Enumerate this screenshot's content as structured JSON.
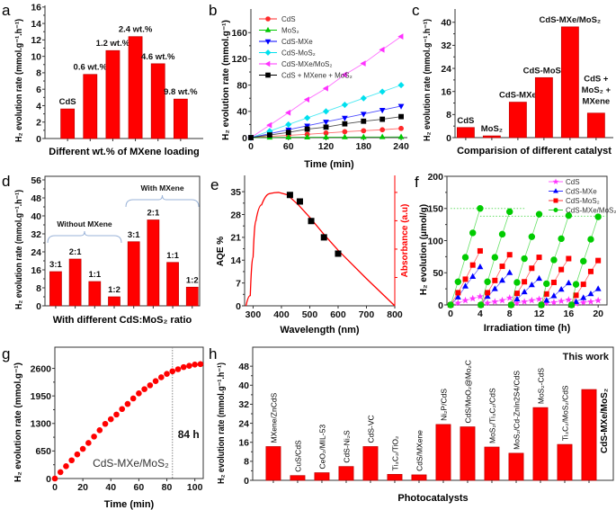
{
  "chart_data": [
    {
      "panel": "a",
      "type": "bar",
      "categories": [
        "CdS",
        "0.6 wt.%",
        "1.2 wt.%",
        "2.4 wt.%",
        "4.6 wt.%",
        "9.8 wt.%"
      ],
      "values": [
        3.6,
        7.8,
        10.7,
        12.4,
        9.1,
        4.8
      ],
      "xlim": [
        0,
        7
      ],
      "ylim": [
        0,
        16.2
      ],
      "yticks": [
        0,
        2,
        4,
        6,
        8,
        10,
        12,
        14,
        16
      ],
      "ylabel": "H₂ evolution rate (mmol.g⁻¹.h⁻¹)",
      "xlabel": "Different wt.% of MXene loading",
      "bar_color": "#ff0000",
      "label_mode": "above"
    },
    {
      "panel": "b",
      "type": "line",
      "x": [
        0,
        30,
        60,
        90,
        120,
        150,
        180,
        210,
        240
      ],
      "series": [
        {
          "name": "CdS",
          "values": [
            0,
            2,
            3.5,
            5,
            7,
            9,
            10.5,
            12,
            14
          ],
          "color": "#ff2a2a",
          "marker": "circle"
        },
        {
          "name": "MoS₂",
          "values": [
            0,
            0.3,
            0.5,
            0.6,
            0.7,
            0.8,
            0.9,
            1.0,
            1.1
          ],
          "color": "#00c800",
          "marker": "triangle-up"
        },
        {
          "name": "CdS-MXe",
          "values": [
            0,
            6,
            12,
            18,
            24,
            30,
            36,
            42,
            48
          ],
          "color": "#0000ff",
          "marker": "triangle-down"
        },
        {
          "name": "CdS-MoS₂",
          "values": [
            0,
            10,
            20,
            30,
            40,
            50,
            60,
            70,
            80
          ],
          "color": "#00e0ee",
          "marker": "diamond"
        },
        {
          "name": "CdS-MXe/MoS₂",
          "values": [
            0,
            19,
            38,
            58,
            75,
            96,
            113,
            134,
            154
          ],
          "color": "#ff33ff",
          "marker": "triangle-left"
        },
        {
          "name": "CdS + MXene + MoS₂",
          "values": [
            0,
            4,
            8,
            13,
            16,
            21,
            25,
            28,
            32
          ],
          "color": "#000000",
          "marker": "square"
        }
      ],
      "xlim": [
        0,
        250
      ],
      "ylim": [
        0,
        196
      ],
      "xticks": [
        0,
        60,
        120,
        180,
        240
      ],
      "yticks": [
        0,
        40,
        80,
        120,
        160
      ],
      "ylabel": "H₂ evolution rate (mmol.g⁻¹)",
      "xlabel": "Time (min)",
      "legend": "top-left"
    },
    {
      "panel": "c",
      "type": "bar",
      "categories": [
        "CdS",
        "MoS₂",
        "CdS-MXe",
        "CdS-MoS₂",
        "CdS-MXe/MoS₂",
        [
          "CdS +",
          "MoS₂ +",
          "MXene"
        ]
      ],
      "values": [
        3.5,
        0.6,
        12.3,
        20.8,
        38.4,
        8.5
      ],
      "xlim": [
        0.59,
        6.66
      ],
      "ylim": [
        0,
        44.6
      ],
      "yticks": [
        0,
        8,
        16,
        24,
        32,
        40
      ],
      "ylabel": "H₂ evolution rate (mmol.g⁻¹.h⁻¹)",
      "xlabel": "Comparision of different catalyst",
      "bar_color": "#ff0000",
      "label_mode": "above"
    },
    {
      "panel": "d",
      "type": "bar",
      "categories": [
        "3:1",
        "2:1",
        "1:1",
        "1:2",
        "3:1",
        "2:1",
        "1:1",
        "1:2"
      ],
      "values": [
        15.2,
        20.8,
        10.8,
        4.0,
        28.5,
        38.2,
        19.3,
        8.3
      ],
      "groups": [
        {
          "label": "Without MXene",
          "members": [
            0,
            1,
            2,
            3
          ]
        },
        {
          "label": "With MXene",
          "members": [
            4,
            5,
            6,
            7
          ]
        }
      ],
      "xlim": [
        0.45,
        8.38
      ],
      "ylim": [
        0,
        57.6
      ],
      "yticks": [
        0,
        8,
        16,
        24,
        32,
        40,
        48,
        56
      ],
      "ylabel": "H₂ evolution rate (mmol.g⁻¹.h⁻¹)",
      "xlabel": "With different CdS:MoS₂ ratio",
      "bar_color": "#ff0000",
      "label_mode": "above"
    },
    {
      "panel": "e",
      "type": "scatter",
      "x": [
        430,
        465,
        505,
        550,
        600
      ],
      "values": [
        34,
        32,
        26,
        21,
        16
      ],
      "absorbance": {
        "x": [
          275,
          290,
          300,
          310,
          330,
          360,
          390,
          420,
          460,
          500,
          550,
          600,
          700,
          800
        ],
        "y": [
          0,
          0.09,
          0.43,
          0.75,
          0.89,
          0.99,
          1.0,
          0.98,
          0.89,
          0.78,
          0.63,
          0.49,
          0.24,
          0
        ],
        "color": "#ff0000"
      },
      "xlim": [
        270,
        800
      ],
      "ylim": [
        0,
        40
      ],
      "ylim_right": [
        0,
        1.15
      ],
      "xticks": [
        300,
        400,
        500,
        600,
        700,
        800
      ],
      "yticks": [
        0,
        7,
        14,
        21,
        28,
        35
      ],
      "ylabel": "AQE %",
      "ylabel_right": "Absorbance (a.u)",
      "xlabel": "Wavelength (nm)"
    },
    {
      "panel": "f",
      "type": "line",
      "cycle_x": [
        [
          0,
          1,
          2,
          3,
          4
        ],
        [
          4.1,
          5,
          6,
          7,
          8
        ],
        [
          8.2,
          9,
          10,
          11,
          12
        ],
        [
          12.3,
          13,
          14,
          15,
          16
        ],
        [
          16.4,
          17,
          18,
          19,
          20
        ]
      ],
      "series": [
        {
          "name": "CdS",
          "color": "#ff33ff",
          "marker": "star",
          "cycles": [
            [
              0,
              3,
              7,
              10,
              13
            ],
            [
              0,
              3,
              5,
              7,
              11
            ],
            [
              0,
              3,
              5,
              7,
              9
            ],
            [
              0,
              3,
              4,
              6,
              8
            ],
            [
              0,
              2,
              4,
              5,
              7
            ]
          ]
        },
        {
          "name": "CdS-MXe",
          "color": "#0000ff",
          "marker": "triangle-up",
          "cycles": [
            [
              0,
              12,
              29,
              44,
              59
            ],
            [
              0,
              13,
              25,
              38,
              50
            ],
            [
              0,
              9,
              20,
              31,
              41
            ],
            [
              0,
              7,
              14,
              24,
              34
            ],
            [
              0,
              5,
              11,
              17,
              25
            ]
          ]
        },
        {
          "name": "CdS-MoS₂",
          "color": "#ff0000",
          "marker": "square",
          "cycles": [
            [
              0,
              19,
              40,
              62,
              84
            ],
            [
              0,
              19,
              38,
              60,
              78
            ],
            [
              0,
              18,
              36,
              57,
              74
            ],
            [
              0,
              17,
              35,
              55,
              72
            ],
            [
              0,
              15,
              32,
              52,
              69
            ]
          ]
        },
        {
          "name": "CdS-MXe/MoS₂",
          "color": "#00cc00",
          "marker": "circle",
          "cycles": [
            [
              0,
              36,
              74,
              112,
              150
            ],
            [
              0,
              36,
              74,
              110,
              145
            ],
            [
              0,
              35,
              72,
              106,
              141
            ],
            [
              0,
              33,
              70,
              103,
              139
            ],
            [
              0,
              32,
              68,
              102,
              137
            ]
          ]
        }
      ],
      "reference_lines": [
        150,
        138
      ],
      "xlim": [
        -0.5,
        21.2
      ],
      "ylim": [
        0,
        200
      ],
      "xticks": [
        0,
        4,
        8,
        12,
        16,
        20
      ],
      "yticks": [
        0,
        50,
        100,
        150,
        200
      ],
      "ylabel": "H₂ evolution (μmol/g)",
      "xlabel": "Irradiation time (h)",
      "legend": "top-right"
    },
    {
      "panel": "g",
      "type": "scatter",
      "x": [
        0,
        4,
        8,
        12,
        16,
        20,
        24,
        28,
        32,
        36,
        40,
        44,
        48,
        52,
        56,
        60,
        64,
        68,
        72,
        76,
        80,
        84,
        88,
        92,
        96,
        100,
        104
      ],
      "values": [
        0,
        150,
        290,
        430,
        570,
        700,
        840,
        990,
        1140,
        1290,
        1400,
        1510,
        1640,
        1760,
        1890,
        2010,
        2110,
        2200,
        2300,
        2390,
        2470,
        2530,
        2580,
        2630,
        2660,
        2690,
        2700
      ],
      "color": "#ff0000",
      "marker_line": 84,
      "annotations": [
        "84 h",
        "CdS-MXe/MoS₂"
      ],
      "xlim": [
        0,
        106
      ],
      "ylim": [
        0,
        3100
      ],
      "xticks": [
        0,
        20,
        40,
        60,
        80,
        100
      ],
      "yticks": [
        0,
        650,
        1300,
        1950,
        2600
      ],
      "ylabel": "H₂ evolution rate (mmol.g⁻¹)",
      "xlabel": "Time (min)"
    },
    {
      "panel": "h",
      "type": "bar",
      "categories": [
        "MXene/ZnCdS",
        "CuS/CdS",
        "CeO₂/MIL-53",
        "CdS-Ni₂S",
        "CdS-VC",
        "Ti₃C₂/TiO₂",
        "CdS/MXene",
        "Ni₂P/CdS",
        "CdS/MoO₂@Mo₂C",
        "MoS₂/Ti₃C₂/CdS",
        "MoS₂/Cd-ZnIn2S4/CdS",
        "MoS₂-CdS",
        "Ti₃C₂/MoS₂/CdS",
        "CdS-MXe/MoS₂"
      ],
      "values": [
        14.2,
        2.0,
        3.2,
        5.8,
        14.2,
        2.5,
        2.3,
        23.5,
        22.5,
        14.0,
        11.4,
        30.6,
        15.1,
        38.2
      ],
      "highlight": "This work",
      "highlight_color": "#ff0000",
      "xlim": [
        0.15,
        15
      ],
      "ylim": [
        0,
        56
      ],
      "yticks": [
        0,
        8,
        16,
        24,
        32,
        40,
        48
      ],
      "ylabel": "H₂ evolution rate (mmol.g⁻¹.h⁻¹)",
      "xlabel": "Photocatalysts",
      "bar_color": "#ff0000",
      "label_mode": "rotated"
    }
  ]
}
